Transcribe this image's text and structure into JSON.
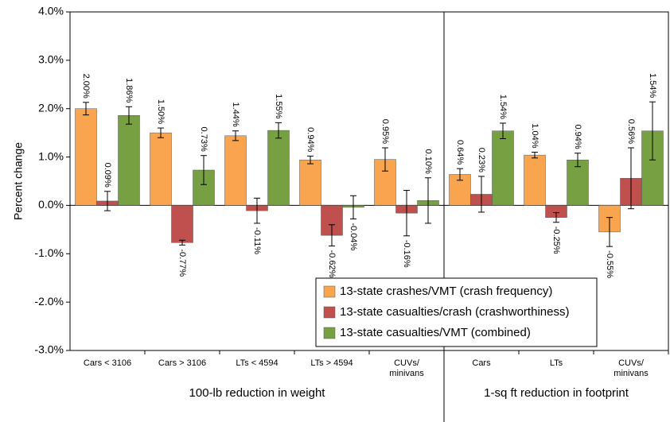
{
  "chart_data": {
    "type": "bar",
    "ylabel": "Percent change",
    "categories": [
      "Cars < 3106",
      "Cars > 3106",
      "LTs < 4594",
      "LTs > 4594",
      "CUVs/\nminivans",
      "Cars",
      "LTs",
      "CUVs/\nminivans"
    ],
    "groups": [
      {
        "label": "100-lb reduction in weight",
        "size": 5
      },
      {
        "label": "1-sq ft reduction in footprint",
        "size": 3
      }
    ],
    "series": [
      {
        "name": "13-state crashes/VMT (crash frequency)",
        "color": "#f9a54f",
        "values": [
          2.0,
          1.5,
          1.44,
          0.94,
          0.95,
          0.64,
          1.04,
          -0.55
        ],
        "value_labels": [
          "2.00%",
          "1.50%",
          "1.44%",
          "0.94%",
          "0.95%",
          "0.64%",
          "1.04%",
          "-0.55%"
        ],
        "errors": [
          0.13,
          0.1,
          0.1,
          0.08,
          0.24,
          0.12,
          0.06,
          0.3
        ]
      },
      {
        "name": "13-state casualties/crash (crashworthiness)",
        "color": "#c0504d",
        "values": [
          0.09,
          -0.77,
          -0.11,
          -0.62,
          -0.16,
          0.23,
          -0.25,
          0.56
        ],
        "value_labels": [
          "0.09%",
          "-0.77%",
          "-0.11%",
          "-0.62%",
          "-0.16%",
          "0.23%",
          "-0.25%",
          "0.56%"
        ],
        "errors": [
          0.2,
          0.05,
          0.26,
          0.22,
          0.47,
          0.37,
          0.1,
          0.63
        ]
      },
      {
        "name": "13-state casualties/VMT (combined)",
        "color": "#77a043",
        "values": [
          1.86,
          0.73,
          1.55,
          -0.04,
          0.1,
          1.54,
          0.94,
          1.54
        ],
        "value_labels": [
          "1.86%",
          "0.73%",
          "1.55%",
          "-0.04%",
          "0.10%",
          "1.54%",
          "0.94%",
          "1.54%"
        ],
        "errors": [
          0.18,
          0.3,
          0.16,
          0.24,
          0.47,
          0.16,
          0.14,
          0.6
        ]
      }
    ],
    "ylim": [
      -3,
      4
    ],
    "yticks": [
      {
        "value": -3,
        "label": "-3.0%"
      },
      {
        "value": -2,
        "label": "-2.0%"
      },
      {
        "value": -1,
        "label": "-1.0%"
      },
      {
        "value": 0,
        "label": "0.0%"
      },
      {
        "value": 1,
        "label": "1.0%"
      },
      {
        "value": 2,
        "label": "2.0%"
      },
      {
        "value": 3,
        "label": "3.0%"
      },
      {
        "value": 4,
        "label": "4.0%"
      }
    ],
    "legend": "lower right"
  }
}
